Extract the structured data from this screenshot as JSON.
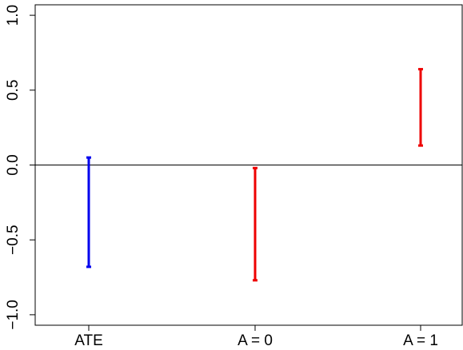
{
  "chart_data": {
    "type": "interval",
    "categories": [
      "ATE",
      "A = 0",
      "A = 1"
    ],
    "intervals": [
      {
        "category": "ATE",
        "lower": -0.68,
        "upper": 0.05,
        "color": "#0000ee"
      },
      {
        "category": "A = 0",
        "lower": -0.77,
        "upper": -0.02,
        "color": "#ee0000"
      },
      {
        "category": "A = 1",
        "lower": 0.13,
        "upper": 0.64,
        "color": "#ee0000"
      }
    ],
    "ylim": [
      -1.07,
      1.07
    ],
    "yticks": [
      -1.0,
      -0.5,
      0.0,
      0.5,
      1.0
    ],
    "ytick_labels": [
      "−1.0",
      "−0.5",
      "0.0",
      "0.5",
      "1.0"
    ],
    "reference_line": 0.0,
    "title": "",
    "xlabel": "",
    "ylabel": "",
    "grid": false,
    "legend": "none"
  }
}
